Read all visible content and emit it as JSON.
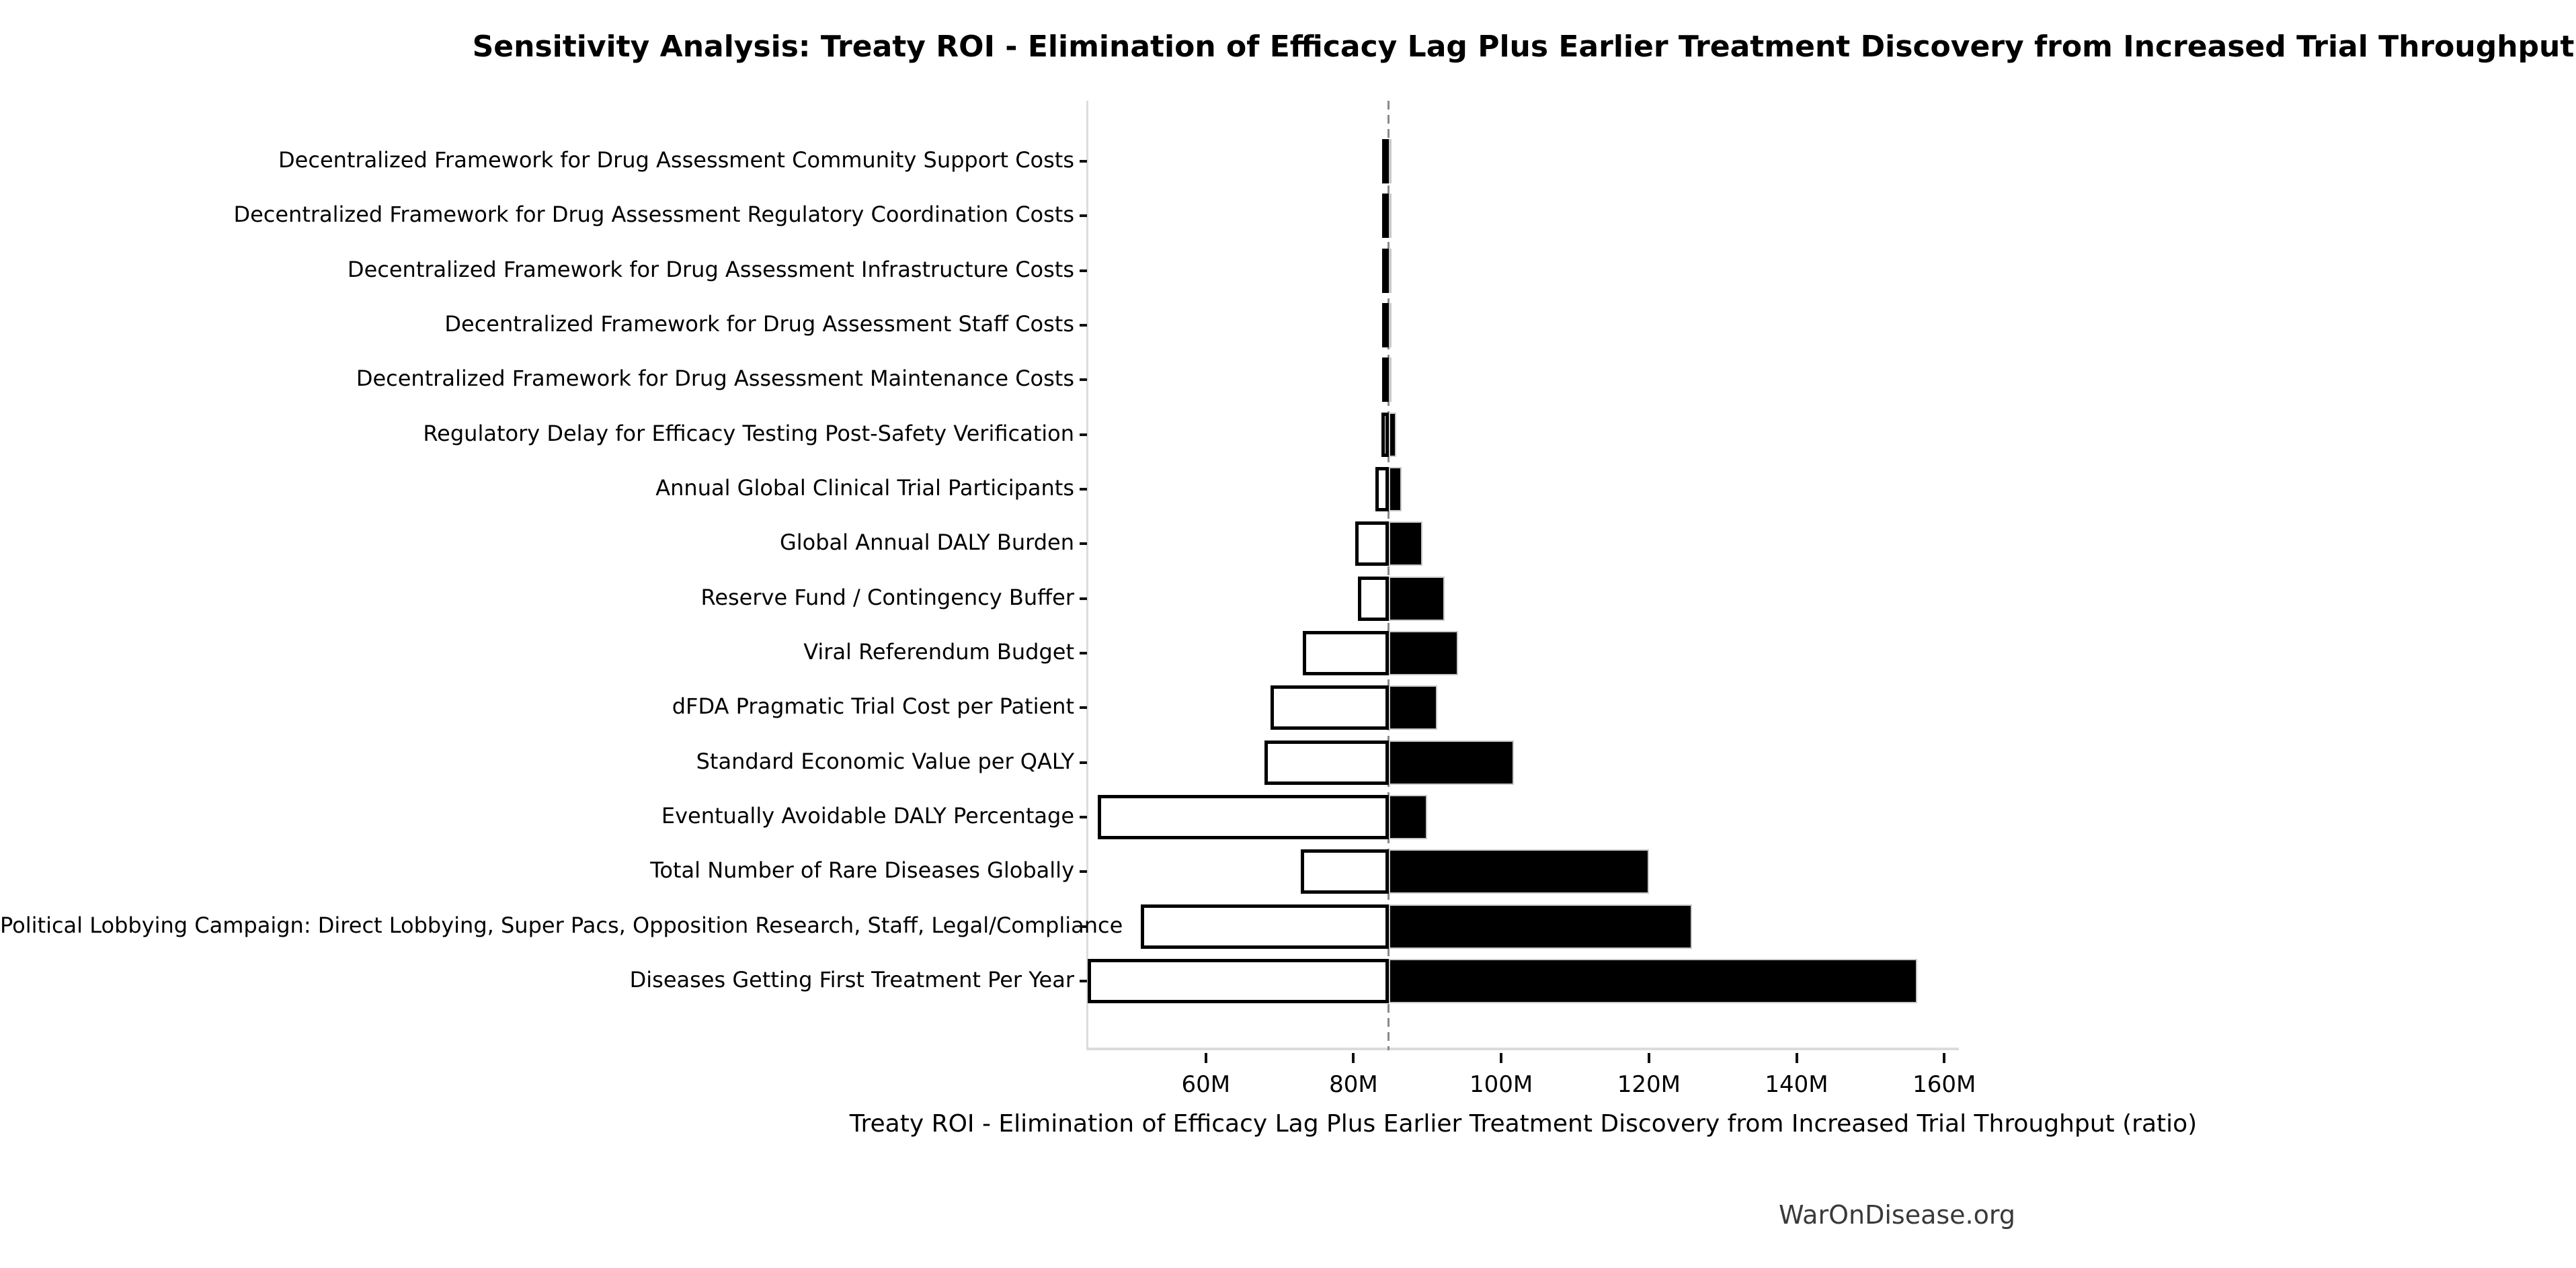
{
  "chart_data": {
    "type": "bar",
    "variant": "tornado-sensitivity",
    "title": "Sensitivity Analysis: Treaty ROI - Elimination of Efficacy Lag Plus Earlier Treatment Discovery from Increased Trial Throughput",
    "xlabel": "Treaty ROI - Elimination of Efficacy Lag Plus Earlier Treatment Discovery from Increased Trial Throughput (ratio)",
    "footer": "WarOnDisease.org",
    "unit": "M",
    "baseline": 84.75,
    "x_axis": {
      "min": 44,
      "max": 161.8,
      "tick_values": [
        60,
        80,
        100,
        120,
        140,
        160
      ],
      "tick_labels": [
        "60M",
        "80M",
        "100M",
        "120M",
        "140M",
        "160M"
      ],
      "grid": false
    },
    "legend": {
      "shown": false
    },
    "rows": [
      {
        "label": "Decentralized Framework for Drug Assessment Community Support Costs",
        "low": 84.5,
        "high": 85.0
      },
      {
        "label": "Decentralized Framework for Drug Assessment Regulatory Coordination Costs",
        "low": 84.55,
        "high": 84.95
      },
      {
        "label": "Decentralized Framework for Drug Assessment Infrastructure Costs",
        "low": 84.6,
        "high": 84.95
      },
      {
        "label": "Decentralized Framework for Drug Assessment Staff Costs",
        "low": 84.6,
        "high": 84.9
      },
      {
        "label": "Decentralized Framework for Drug Assessment Maintenance Costs",
        "low": 84.65,
        "high": 84.85
      },
      {
        "label": "Regulatory Delay for Efficacy Testing Post-Safety Verification",
        "low": 83.8,
        "high": 85.8
      },
      {
        "label": "Annual Global Clinical Trial Participants",
        "low": 83.0,
        "high": 86.5
      },
      {
        "label": "Global Annual DALY Burden",
        "low": 80.2,
        "high": 89.3
      },
      {
        "label": "Reserve Fund / Contingency Buffer",
        "low": 80.6,
        "high": 92.3
      },
      {
        "label": "Viral Referendum Budget",
        "low": 73.1,
        "high": 94.2
      },
      {
        "label": "dFDA Pragmatic Trial Cost per Patient",
        "low": 68.8,
        "high": 91.3
      },
      {
        "label": "Standard Economic Value per QALY",
        "low": 67.9,
        "high": 101.7
      },
      {
        "label": "Eventually Avoidable DALY Percentage",
        "low": 45.4,
        "high": 90.0
      },
      {
        "label": "Total Number of Rare Diseases Globally",
        "low": 72.9,
        "high": 120.0
      },
      {
        "label": "Political Lobbying Campaign: Direct Lobbying, Super Pacs, Opposition Research, Staff, Legal/Compliance",
        "low": 51.2,
        "high": 125.8
      },
      {
        "label": "Diseases Getting First Treatment Per Year",
        "low": 44.0,
        "high": 156.3
      }
    ],
    "colors": {
      "low_bar_fill": "#ffffff",
      "low_bar_edge": "#000000",
      "high_bar_fill": "#000000",
      "high_bar_edge": "#c9c9c9",
      "baseline": "#8a8a8a",
      "spine": "#dcdcdc",
      "tick": "#111111",
      "footer_text": "#3a3a3a"
    }
  }
}
